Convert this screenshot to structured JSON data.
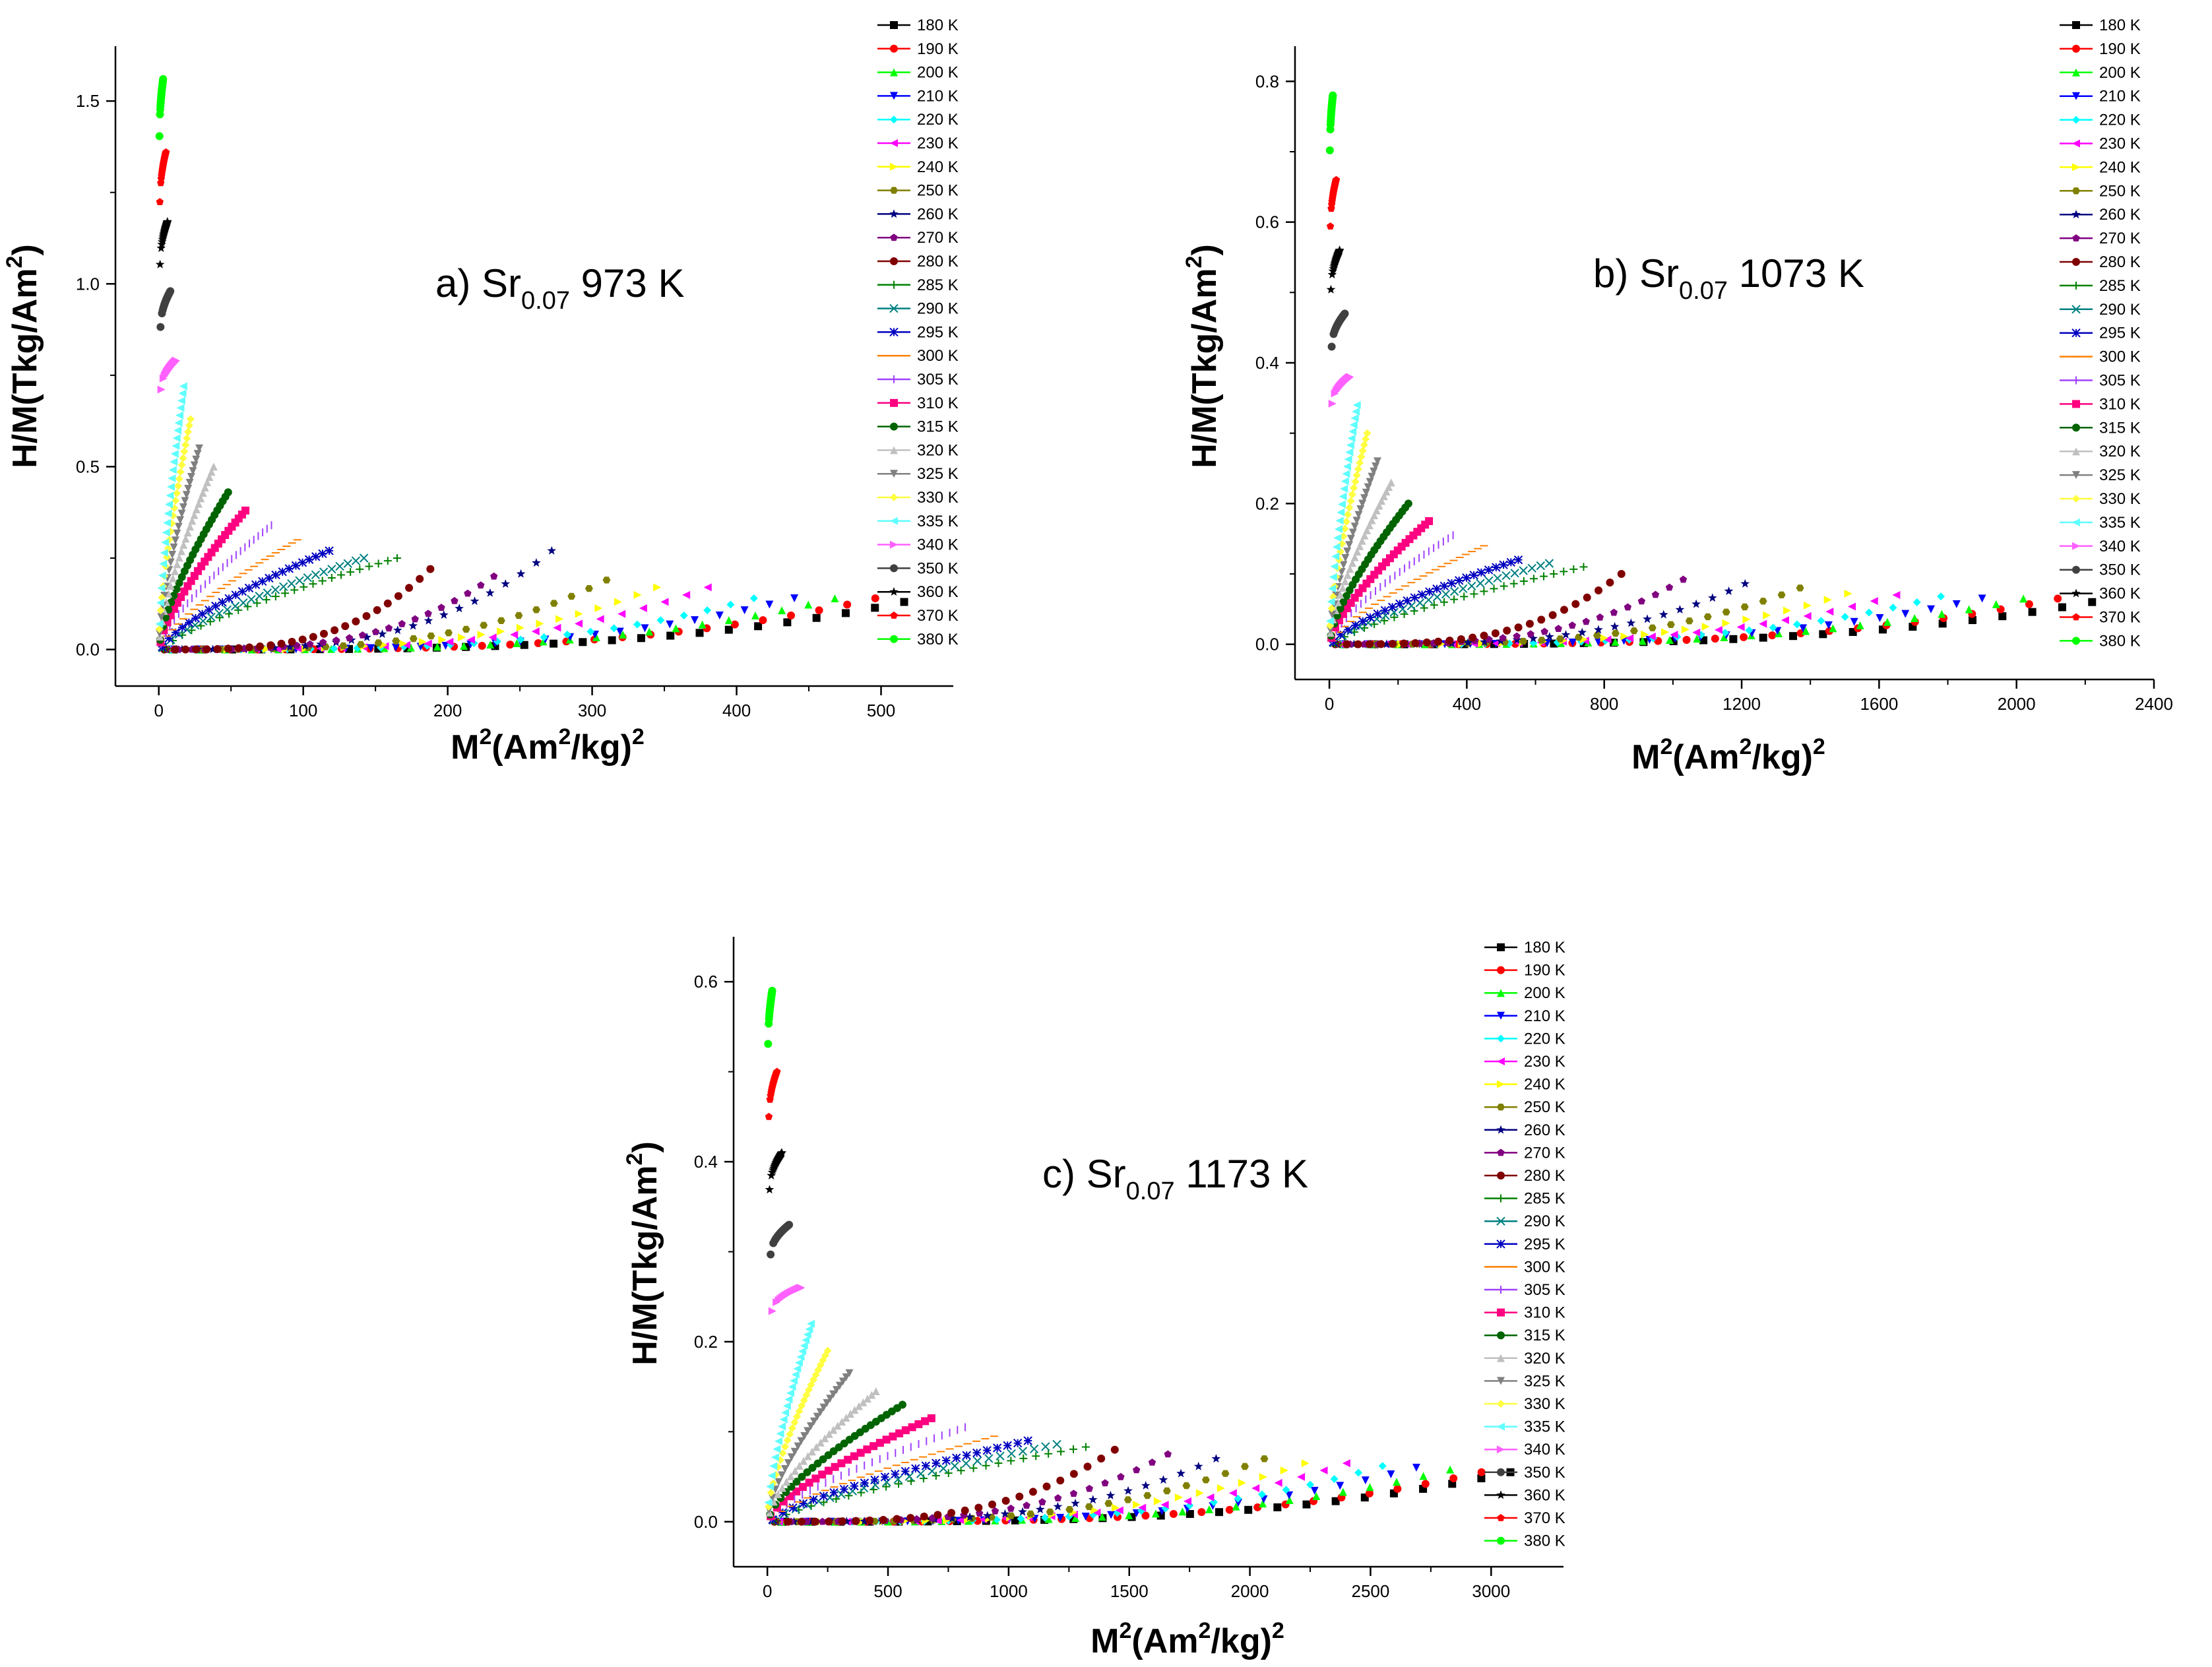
{
  "chart_data": [
    {
      "type": "scatter",
      "panel": "a",
      "title": "",
      "annotation": {
        "prefix": "a) Sr",
        "subscript": "0.07",
        "suffix": "973 K"
      },
      "xlabel": {
        "base": "M",
        "sup1": "2",
        "mid": "(Am",
        "sup2": "2",
        "mid2": "/kg)",
        "sup3": "2"
      },
      "ylabel": {
        "base": "H/M(Tkg/Am",
        "sup": "2",
        "end": ")"
      },
      "xlim": [
        -30,
        550
      ],
      "ylim": [
        -0.1,
        1.65
      ],
      "xticks": [
        0,
        100,
        200,
        300,
        400,
        500
      ],
      "yticks": [
        0.0,
        0.5,
        1.0,
        1.5
      ],
      "legend": [
        "180 K",
        "190 K",
        "200 K",
        "210 K",
        "220 K",
        "230 K",
        "240 K",
        "250 K",
        "260 K",
        "270 K",
        "280 K",
        "285 K",
        "290 K",
        "295 K",
        "300 K",
        "305 K",
        "310 K",
        "315 K",
        "320 K",
        "325 K",
        "330 K",
        "335 K",
        "340 K",
        "350 K",
        "360 K",
        "370 K",
        "380 K"
      ],
      "series_summary": {
        "x_max": [
          516,
          496,
          468,
          440,
          412,
          380,
          345,
          310,
          272,
          232,
          188,
          165,
          142,
          118,
          96,
          78,
          60,
          48,
          38,
          28,
          22,
          17,
          12,
          8,
          6,
          5,
          3
        ],
        "y_end": [
          0.13,
          0.14,
          0.14,
          0.14,
          0.14,
          0.17,
          0.17,
          0.19,
          0.27,
          0.2,
          0.22,
          0.25,
          0.25,
          0.27,
          0.3,
          0.34,
          0.38,
          0.43,
          0.5,
          0.55,
          0.63,
          0.72,
          0.79,
          0.98,
          1.17,
          1.36,
          1.56
        ]
      }
    },
    {
      "type": "scatter",
      "panel": "b",
      "title": "",
      "annotation": {
        "prefix": "b) Sr",
        "subscript": "0.07",
        "suffix": "1073 K"
      },
      "xlabel": {
        "base": "M",
        "sup1": "2",
        "mid": "(Am",
        "sup2": "2",
        "mid2": "/kg)",
        "sup3": "2"
      },
      "ylabel": {
        "base": "H/M(Tkg/Am",
        "sup": "2",
        "end": ")"
      },
      "xlim": [
        -100,
        2400
      ],
      "ylim": [
        -0.05,
        0.85
      ],
      "xticks": [
        0,
        400,
        800,
        1200,
        1600,
        2000,
        2400
      ],
      "yticks": [
        0.0,
        0.2,
        0.4,
        0.6,
        0.8
      ],
      "legend": [
        "180 K",
        "190 K",
        "200 K",
        "210 K",
        "220 K",
        "230 K",
        "240 K",
        "250 K",
        "260 K",
        "270 K",
        "280 K",
        "285 K",
        "290 K",
        "295 K",
        "300 K",
        "305 K",
        "310 K",
        "315 K",
        "320 K",
        "325 K",
        "330 K",
        "335 K",
        "340 K",
        "350 K",
        "360 K",
        "370 K",
        "380 K"
      ],
      "series_summary": {
        "x_max": [
          2220,
          2120,
          2020,
          1900,
          1780,
          1650,
          1510,
          1370,
          1210,
          1030,
          850,
          740,
          640,
          550,
          450,
          360,
          290,
          230,
          180,
          140,
          110,
          80,
          60,
          45,
          30,
          20,
          10
        ],
        "y_end": [
          0.06,
          0.065,
          0.065,
          0.065,
          0.068,
          0.07,
          0.072,
          0.08,
          0.086,
          0.092,
          0.1,
          0.11,
          0.115,
          0.12,
          0.14,
          0.155,
          0.175,
          0.2,
          0.23,
          0.26,
          0.3,
          0.34,
          0.38,
          0.47,
          0.56,
          0.66,
          0.78
        ]
      }
    },
    {
      "type": "scatter",
      "panel": "c",
      "title": "",
      "annotation": {
        "prefix": "c) Sr",
        "subscript": "0.07",
        "suffix": "1173 K"
      },
      "xlabel": {
        "base": "M",
        "sup1": "2",
        "mid": "(Am",
        "sup2": "2",
        "mid2": "/kg)",
        "sup3": "2"
      },
      "ylabel": {
        "base": "H/M(Tkg/Am",
        "sup": "2",
        "end": ")"
      },
      "xlim": [
        -140,
        3300
      ],
      "ylim": [
        -0.05,
        0.65
      ],
      "xticks": [
        0,
        500,
        1000,
        1500,
        2000,
        2500,
        3000
      ],
      "yticks": [
        0.0,
        0.2,
        0.4,
        0.6
      ],
      "legend": [
        "180 K",
        "190 K",
        "200 K",
        "210 K",
        "220 K",
        "230 K",
        "240 K",
        "250 K",
        "260 K",
        "270 K",
        "280 K",
        "285 K",
        "290 K",
        "295 K",
        "300 K",
        "305 K",
        "310 K",
        "315 K",
        "320 K",
        "325 K",
        "330 K",
        "335 K",
        "340 K",
        "350 K",
        "360 K",
        "370 K",
        "380 K"
      ],
      "series_summary": {
        "x_max": [
          3080,
          2960,
          2830,
          2690,
          2550,
          2400,
          2230,
          2060,
          1860,
          1660,
          1440,
          1320,
          1200,
          1080,
          940,
          820,
          680,
          560,
          450,
          340,
          250,
          180,
          140,
          90,
          60,
          40,
          20
        ],
        "y_end": [
          0.055,
          0.055,
          0.058,
          0.06,
          0.062,
          0.065,
          0.065,
          0.07,
          0.07,
          0.075,
          0.08,
          0.083,
          0.086,
          0.09,
          0.095,
          0.105,
          0.115,
          0.13,
          0.145,
          0.165,
          0.19,
          0.22,
          0.26,
          0.33,
          0.41,
          0.5,
          0.59
        ]
      }
    }
  ],
  "series_colors": [
    "#000000",
    "#ff0000",
    "#00ff00",
    "#0000ff",
    "#00ffff",
    "#ff00ff",
    "#ffff00",
    "#808000",
    "#000080",
    "#800080",
    "#800000",
    "#008000",
    "#008080",
    "#0000c0",
    "#ff8000",
    "#a040ff",
    "#ff0080",
    "#006400",
    "#c0c0c0",
    "#808080",
    "#ffff40",
    "#60ffff",
    "#ff60ff",
    "#404040",
    "#000000",
    "#ff0000",
    "#00ff00"
  ],
  "series_markers": [
    "square",
    "circle",
    "triangle-up",
    "triangle-down",
    "diamond",
    "triangle-left",
    "triangle-right",
    "hexagon",
    "star",
    "pentagon",
    "circle",
    "plus",
    "cross",
    "asterisk",
    "dash",
    "vbar",
    "square",
    "circle",
    "triangle-up",
    "triangle-down",
    "diamond",
    "triangle-left",
    "triangle-right",
    "circle",
    "star",
    "pentagon",
    "circle"
  ]
}
